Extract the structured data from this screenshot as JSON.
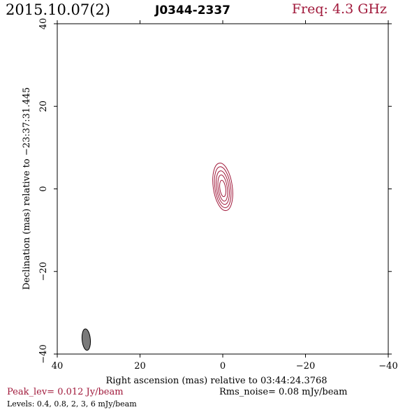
{
  "header": {
    "date": "2015.10.07(2)",
    "source": "J0344-2337",
    "freq": "Freq: 4.3 GHz"
  },
  "footer": {
    "peak": "Peak_lev=  0.012 Jy/beam",
    "noise": "Rms_noise= 0.08 mJy/beam",
    "levels": "Levels: 0.4, 0.8,    2,    3,    6 mJy/beam"
  },
  "colors": {
    "contour": "#a0183a",
    "beam_fill": "#7a7a7a",
    "text_accent": "#a0183a"
  },
  "chart_data": {
    "type": "contour",
    "xlabel": "Right ascension (mas) relative to 03:44:24.3768",
    "ylabel": "Declination (mas) relative to −23:37:31.445",
    "xlim": [
      40,
      -40
    ],
    "ylim": [
      -40,
      40
    ],
    "x_ticks": [
      40,
      20,
      0,
      -20,
      -40
    ],
    "y_ticks": [
      -40,
      -20,
      0,
      20,
      40
    ],
    "x_tick_labels": [
      "40",
      "20",
      "0",
      "−20",
      "−40"
    ],
    "y_tick_labels": [
      "−40",
      "−20",
      "0",
      "20",
      "40"
    ],
    "contours": [
      {
        "level_mJy": 0.4,
        "center": [
          0,
          0.5
        ],
        "semi_major": 5.8,
        "semi_minor": 2.3,
        "pa_deg": -8
      },
      {
        "level_mJy": 0.8,
        "center": [
          0,
          0.4
        ],
        "semi_major": 5.0,
        "semi_minor": 1.9,
        "pa_deg": -8
      },
      {
        "level_mJy": 2,
        "center": [
          0,
          0.3
        ],
        "semi_major": 4.1,
        "semi_minor": 1.5,
        "pa_deg": -8
      },
      {
        "level_mJy": 3,
        "center": [
          0,
          0.2
        ],
        "semi_major": 3.2,
        "semi_minor": 1.1,
        "pa_deg": -8
      },
      {
        "level_mJy": 6,
        "center": [
          0,
          0.1
        ],
        "semi_major": 2.0,
        "semi_minor": 0.7,
        "pa_deg": -8
      }
    ],
    "beam": {
      "center": [
        33,
        -36.5
      ],
      "semi_major": 2.6,
      "semi_minor": 1.0,
      "pa_deg": -5
    }
  }
}
